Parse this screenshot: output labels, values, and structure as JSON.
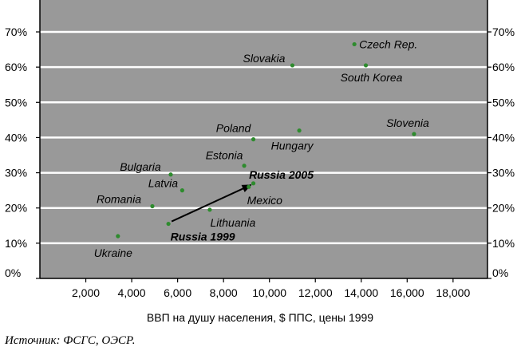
{
  "chart_data": {
    "type": "scatter",
    "title": "",
    "xlabel": "ВВП на душу населения, $ ППС, цены 1999",
    "ylabel": "",
    "xlim": [
      0,
      19500
    ],
    "ylim": [
      0,
      0.7
    ],
    "x_ticks": [
      2000,
      4000,
      6000,
      8000,
      10000,
      12000,
      14000,
      16000,
      18000
    ],
    "x_tick_labels": [
      "2,000",
      "4,000",
      "6,000",
      "8,000",
      "10,000",
      "12,000",
      "14,000",
      "16,000",
      "18,000"
    ],
    "y_ticks": [
      0,
      0.1,
      0.2,
      0.3,
      0.4,
      0.5,
      0.6,
      0.7
    ],
    "y_tick_labels": [
      "0%",
      "10%",
      "20%",
      "30%",
      "40%",
      "50%",
      "60%",
      "70%"
    ],
    "grid": "horizontal",
    "colors": {
      "plot_background": "#999999",
      "grid": "#ffffff",
      "point": "#2e8b2e",
      "arrow": "#000000"
    },
    "points": [
      {
        "label": "Czech Rep.",
        "x": 13700,
        "y": 0.665
      },
      {
        "label": "Slovakia",
        "x": 11000,
        "y": 0.605
      },
      {
        "label": "South Korea",
        "x": 14200,
        "y": 0.605
      },
      {
        "label": "Slovenia",
        "x": 16300,
        "y": 0.41
      },
      {
        "label": "Hungary",
        "x": 11300,
        "y": 0.42
      },
      {
        "label": "Poland",
        "x": 9300,
        "y": 0.395
      },
      {
        "label": "Estonia",
        "x": 8900,
        "y": 0.32
      },
      {
        "label": "Bulgaria",
        "x": 5700,
        "y": 0.295
      },
      {
        "label": "Latvia",
        "x": 6200,
        "y": 0.25
      },
      {
        "label": "Russia 2005",
        "x": 9300,
        "y": 0.27
      },
      {
        "label": "Mexico",
        "x": 9100,
        "y": 0.26
      },
      {
        "label": "Romania",
        "x": 4900,
        "y": 0.205
      },
      {
        "label": "Lithuania",
        "x": 7400,
        "y": 0.195
      },
      {
        "label": "Russia 1999",
        "x": 5600,
        "y": 0.155
      },
      {
        "label": "Ukraine",
        "x": 3400,
        "y": 0.12
      }
    ],
    "arrow": {
      "from": "Russia 1999",
      "to": "Russia 2005"
    }
  },
  "source_note": "Источник: ФСГС, ОЭСР."
}
